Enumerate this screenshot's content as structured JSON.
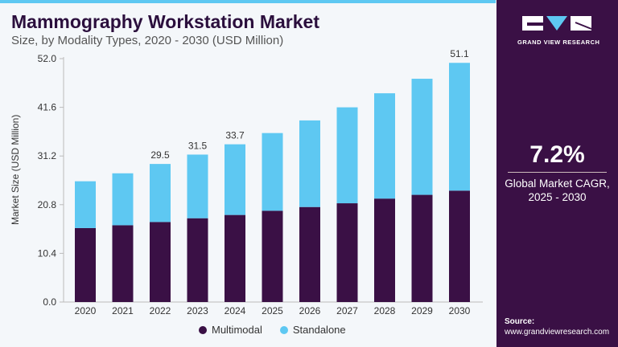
{
  "header": {
    "title": "Mammography Workstation Market",
    "subtitle": "Size, by Modality Types, 2020 - 2030 (USD Million)"
  },
  "sidebar": {
    "logo_text": "GRAND VIEW RESEARCH",
    "cagr_value": "7.2%",
    "cagr_label_1": "Global Market CAGR,",
    "cagr_label_2": "2025 - 2030",
    "source_label": "Source:",
    "source_url": "www.grandviewresearch.com"
  },
  "colors": {
    "multimodal": "#3a1045",
    "standalone": "#5ec8f2",
    "panel": "#3a1045"
  },
  "chart_data": {
    "type": "bar",
    "stacked": true,
    "title": "Mammography Workstation Market",
    "ylabel": "Market Size (USD Million)",
    "xlabel": "",
    "ylim": [
      0,
      52
    ],
    "yticks": [
      "0.0",
      "10.4",
      "20.8",
      "31.2",
      "41.6",
      "52.0"
    ],
    "grid": false,
    "legend": "bottom",
    "categories": [
      "2020",
      "2021",
      "2022",
      "2023",
      "2024",
      "2025",
      "2026",
      "2027",
      "2028",
      "2029",
      "2030"
    ],
    "series": [
      {
        "name": "Multimodal",
        "values": [
          15.8,
          16.4,
          17.1,
          17.9,
          18.6,
          19.5,
          20.3,
          21.1,
          22.1,
          22.9,
          23.8
        ]
      },
      {
        "name": "Standalone",
        "values": [
          10.0,
          11.1,
          12.4,
          13.6,
          15.1,
          16.6,
          18.5,
          20.5,
          22.5,
          24.8,
          27.3
        ]
      }
    ],
    "data_labels": {
      "2022": "29.5",
      "2023": "31.5",
      "2024": "33.7",
      "2030": "51.1"
    }
  }
}
